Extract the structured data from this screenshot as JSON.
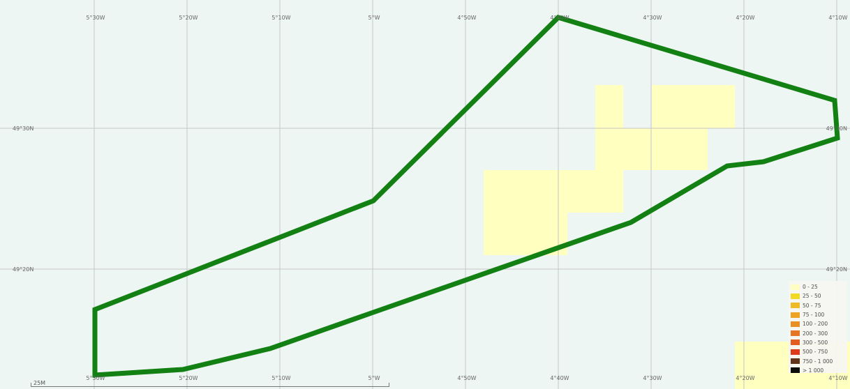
{
  "map": {
    "graticule": {
      "lon_labels": [
        "5°30W",
        "5°20W",
        "5°10W",
        "5°W",
        "4°50W",
        "4°40W",
        "4°30W",
        "4°20W",
        "4°10W"
      ],
      "lat_labels": [
        "49°30N",
        "49°20N"
      ]
    },
    "legend": {
      "items": [
        {
          "label": "0 - 25",
          "color": "#ffffc0"
        },
        {
          "label": "25 - 50",
          "color": "#f2d81c"
        },
        {
          "label": "50 - 75",
          "color": "#f0b81a"
        },
        {
          "label": "75 - 100",
          "color": "#ee9f1a"
        },
        {
          "label": "100 - 200",
          "color": "#ea8a18"
        },
        {
          "label": "200 - 300",
          "color": "#e66f18"
        },
        {
          "label": "300 - 500",
          "color": "#e25516"
        },
        {
          "label": "500 - 750",
          "color": "#dc3214"
        },
        {
          "label": "750 - 1 000",
          "color": "#5a2a10"
        },
        {
          "label": "> 1 000",
          "color": "#000000"
        }
      ]
    },
    "scale_label": "25M",
    "colors": {
      "background": "#eef6f4",
      "grid": "#c6c6c6",
      "boundary": "#128012",
      "cell_low": "#ffffc0"
    }
  }
}
